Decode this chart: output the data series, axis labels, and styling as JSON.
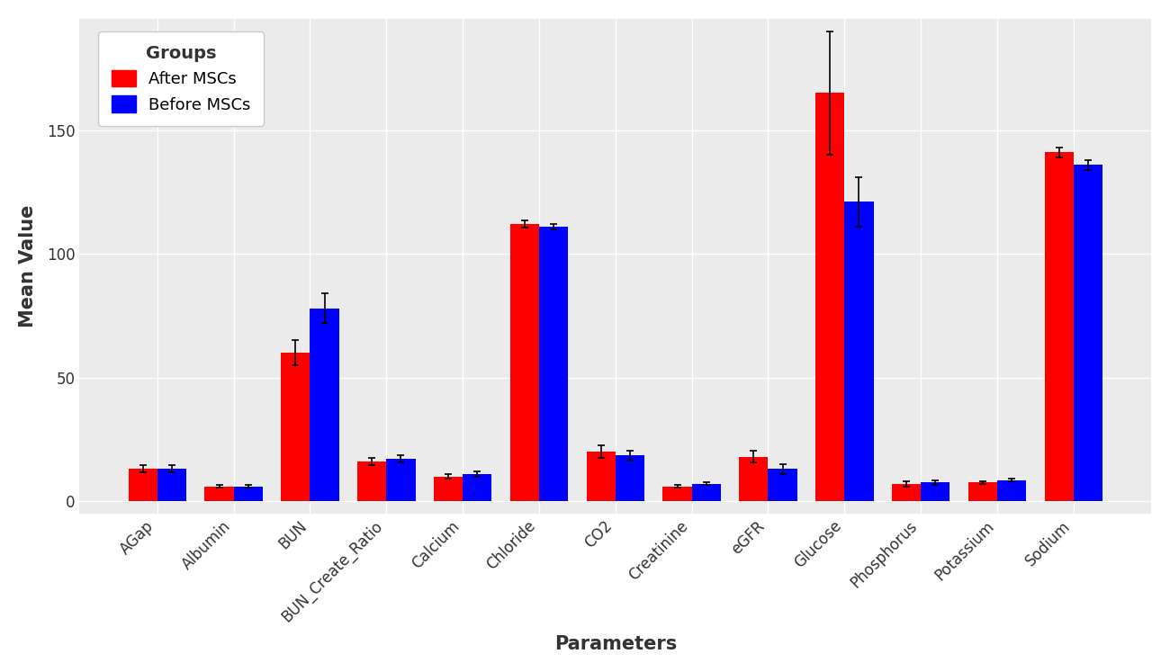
{
  "categories": [
    "AGap",
    "Albumin",
    "BUN",
    "BUN_Create_Ratio",
    "Calcium",
    "Chloride",
    "CO2",
    "Creatinine",
    "eGFR",
    "Glucose",
    "Phosphorus",
    "Potassium",
    "Sodium"
  ],
  "after_mscs": [
    13,
    6,
    60,
    16,
    10,
    112,
    20,
    6,
    18,
    165,
    7,
    7.5,
    141
  ],
  "before_mscs": [
    13,
    6,
    78,
    17,
    11,
    111,
    18.5,
    7,
    13,
    121,
    7.5,
    8.5,
    136
  ],
  "after_err": [
    1.5,
    0.5,
    5,
    1.5,
    1.0,
    1.5,
    2.5,
    0.5,
    2.5,
    25,
    1.0,
    0.5,
    2
  ],
  "before_err": [
    1.5,
    0.5,
    6,
    1.5,
    1.0,
    1.0,
    2.0,
    0.5,
    2.0,
    10,
    1.0,
    0.5,
    2
  ],
  "after_color": "#FF0000",
  "before_color": "#0000FF",
  "bar_width": 0.38,
  "xlabel": "Parameters",
  "ylabel": "Mean Value",
  "legend_title": "Groups",
  "legend_after": "After MSCs",
  "legend_before": "Before MSCs",
  "ylim": [
    -5,
    195
  ],
  "yticks": [
    0,
    50,
    100,
    150
  ],
  "panel_bg": "#EBEBEB",
  "plot_bg": "#FFFFFF",
  "grid_color": "#FFFFFF",
  "text_color": "#333333",
  "axis_fontsize": 15,
  "tick_fontsize": 12,
  "legend_fontsize": 13,
  "legend_title_fontsize": 14
}
